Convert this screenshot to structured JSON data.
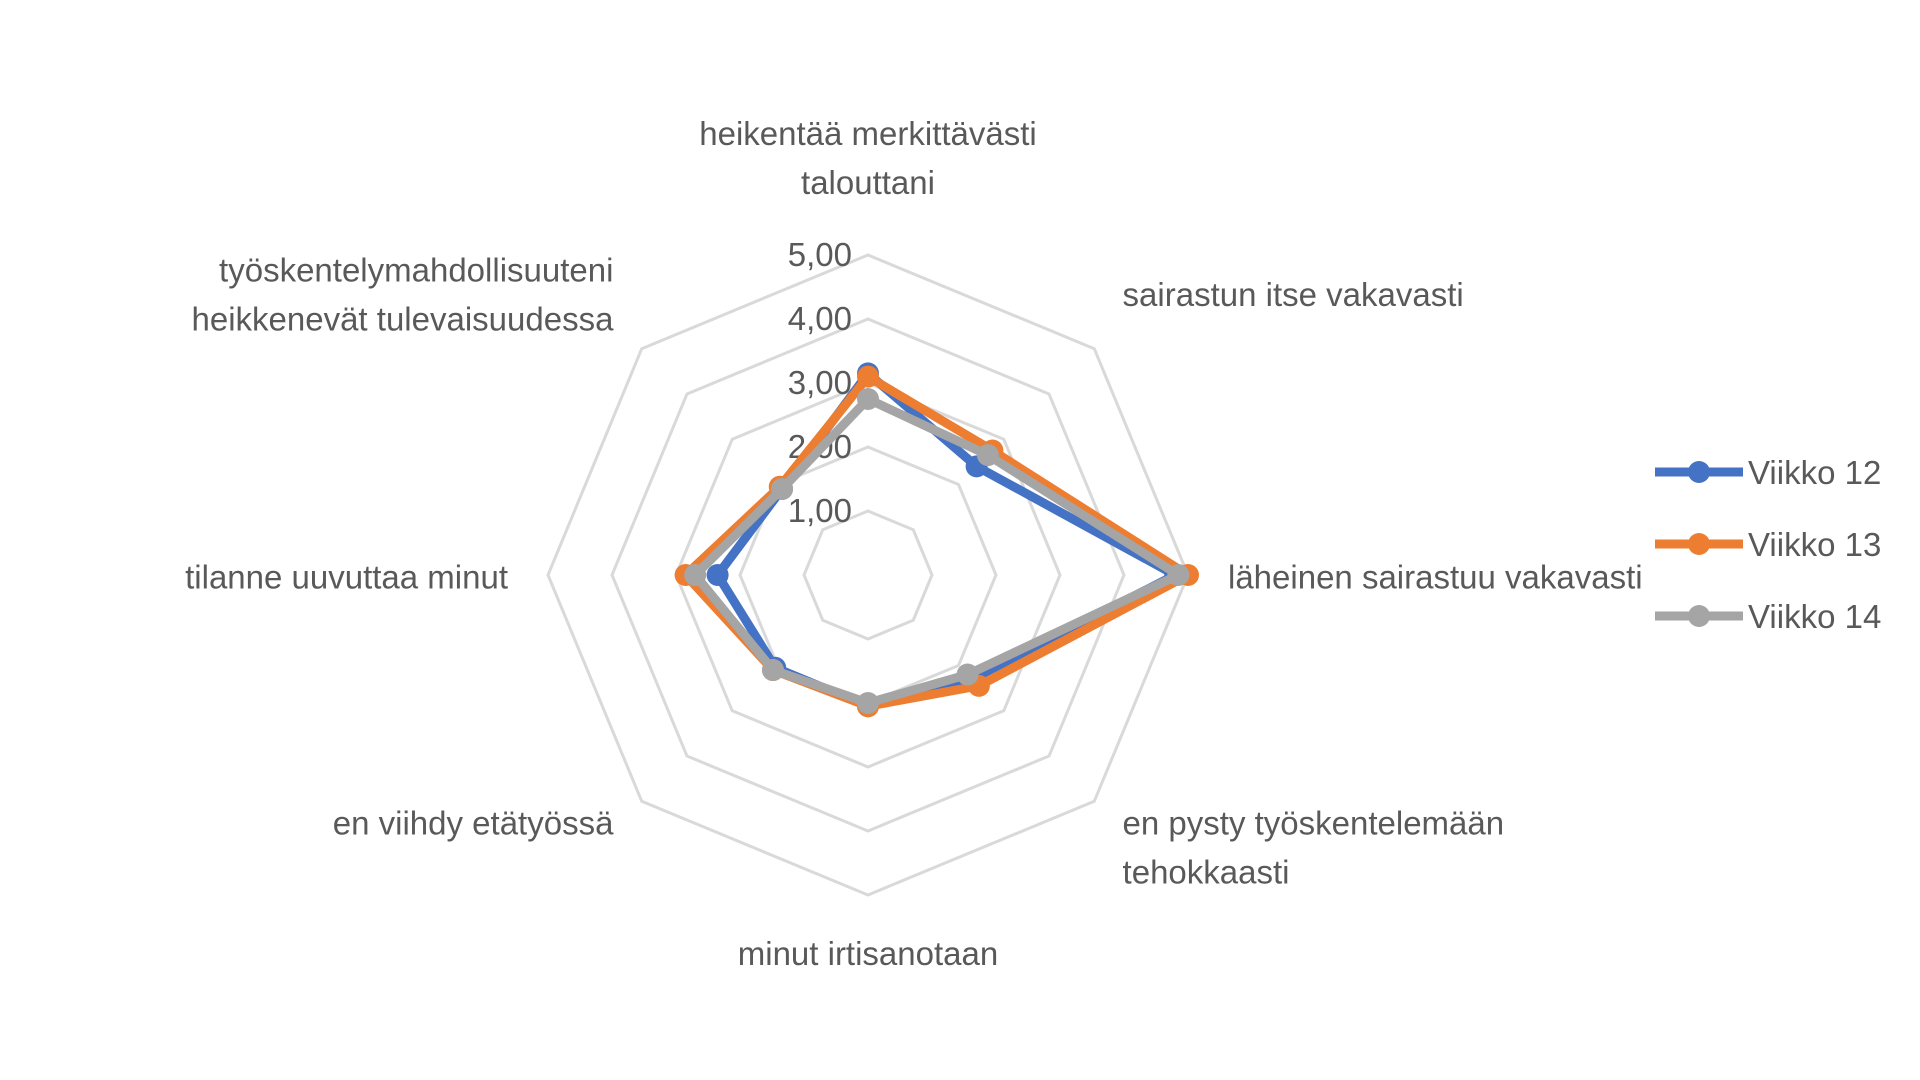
{
  "chart_data": {
    "type": "radar",
    "categories": [
      "heikentää merkittävästi taloutani",
      "sairastun itse vakavasti",
      "läheinen sairastuu vakavasti",
      "en pysty työskentelemään tehokkaasti",
      "minut irtisanotaan",
      "en viihdy etätyössä",
      "tilanne uuvuttaa minut",
      "työskentelymahdollisuuteni heikkenevät tulevaisuudessa"
    ],
    "category_lines": [
      [
        "heikentää merkittävästi",
        "talouttani"
      ],
      [
        "sairastun itse vakavasti"
      ],
      [
        "läheinen sairastuu vakavasti"
      ],
      [
        "en pysty työskentelemään",
        "tehokkaasti"
      ],
      [
        "minut irtisanotaan"
      ],
      [
        "en viihdy etätyössä"
      ],
      [
        "tilanne uuvuttaa minut"
      ],
      [
        "työskentelymahdollisuuteni",
        "heikkenevät tulevaisuudessa"
      ]
    ],
    "ticks": [
      "1,00",
      "2,00",
      "3,00",
      "4,00",
      "5,00"
    ],
    "range": [
      0,
      5
    ],
    "series": [
      {
        "name": "Viikko 12",
        "color": "#4472c4",
        "values": [
          3.15,
          2.4,
          4.8,
          2.3,
          2.05,
          2.05,
          2.35,
          1.9
        ]
      },
      {
        "name": "Viikko 13",
        "color": "#ed7d31",
        "values": [
          3.1,
          2.75,
          5.0,
          2.45,
          2.05,
          2.1,
          2.85,
          1.95
        ]
      },
      {
        "name": "Viikko 14",
        "color": "#a5a5a5",
        "values": [
          2.75,
          2.65,
          4.85,
          2.2,
          2.0,
          2.1,
          2.7,
          1.9
        ]
      }
    ],
    "legend": "right",
    "grid": true
  }
}
